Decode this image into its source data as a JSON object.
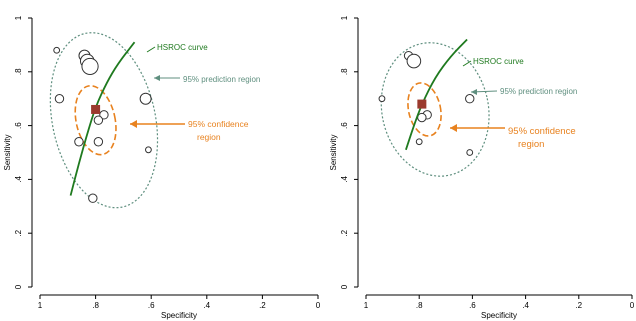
{
  "chart_data": [
    {
      "type": "scatter",
      "title": "",
      "xlabel": "Specificity",
      "ylabel": "Sensitivity",
      "xlim": [
        1,
        0
      ],
      "ylim": [
        0,
        1
      ],
      "x_ticks": [
        "1",
        ".8",
        ".6",
        ".4",
        ".2",
        "0"
      ],
      "y_ticks": [
        "0",
        ".2",
        ".4",
        ".6",
        ".8",
        "1"
      ],
      "study_points": [
        {
          "spec": 0.94,
          "sens": 0.88,
          "weight": 1
        },
        {
          "spec": 0.84,
          "sens": 0.86,
          "weight": 3
        },
        {
          "spec": 0.83,
          "sens": 0.84,
          "weight": 4
        },
        {
          "spec": 0.82,
          "sens": 0.82,
          "weight": 5
        },
        {
          "spec": 0.93,
          "sens": 0.7,
          "weight": 2
        },
        {
          "spec": 0.62,
          "sens": 0.7,
          "weight": 3
        },
        {
          "spec": 0.77,
          "sens": 0.64,
          "weight": 2
        },
        {
          "spec": 0.79,
          "sens": 0.62,
          "weight": 2
        },
        {
          "spec": 0.86,
          "sens": 0.54,
          "weight": 2
        },
        {
          "spec": 0.79,
          "sens": 0.54,
          "weight": 2
        },
        {
          "spec": 0.61,
          "sens": 0.51,
          "weight": 1
        },
        {
          "spec": 0.81,
          "sens": 0.33,
          "weight": 2
        }
      ],
      "summary_point": {
        "spec": 0.8,
        "sens": 0.66
      },
      "hsroc_curve": [
        [
          0.89,
          0.34
        ],
        [
          0.86,
          0.46
        ],
        [
          0.83,
          0.57
        ],
        [
          0.8,
          0.67
        ],
        [
          0.76,
          0.76
        ],
        [
          0.72,
          0.83
        ],
        [
          0.66,
          0.91
        ]
      ],
      "confidence_region": {
        "spec": 0.8,
        "sens": 0.62,
        "spec_radius": 0.07,
        "sens_radius": 0.13
      },
      "prediction_region": {
        "spec": 0.77,
        "sens": 0.62,
        "spec_radius": 0.185,
        "sens_radius": 0.33
      },
      "annotations": {
        "hsroc": "HSROC curve",
        "prediction": "95% prediction region",
        "confidence_line1": "95% confidence",
        "confidence_line2": "region"
      },
      "colors": {
        "hsroc": "#1f7a1f",
        "confidence": "#e8821f",
        "prediction": "#5f8f7f",
        "summary": "#9b3a2e",
        "points": "#333333"
      }
    },
    {
      "type": "scatter",
      "title": "",
      "xlabel": "Specificity",
      "ylabel": "Sensitivity",
      "xlim": [
        1,
        0
      ],
      "ylim": [
        0,
        1
      ],
      "x_ticks": [
        "1",
        ".8",
        ".6",
        ".4",
        ".2",
        "0"
      ],
      "y_ticks": [
        "0",
        ".2",
        ".4",
        ".6",
        ".8",
        "1"
      ],
      "study_points": [
        {
          "spec": 0.84,
          "sens": 0.86,
          "weight": 2
        },
        {
          "spec": 0.82,
          "sens": 0.84,
          "weight": 4
        },
        {
          "spec": 0.94,
          "sens": 0.7,
          "weight": 1
        },
        {
          "spec": 0.61,
          "sens": 0.7,
          "weight": 2
        },
        {
          "spec": 0.77,
          "sens": 0.64,
          "weight": 2
        },
        {
          "spec": 0.79,
          "sens": 0.63,
          "weight": 2
        },
        {
          "spec": 0.8,
          "sens": 0.54,
          "weight": 1
        },
        {
          "spec": 0.61,
          "sens": 0.5,
          "weight": 1
        }
      ],
      "summary_point": {
        "spec": 0.79,
        "sens": 0.68
      },
      "hsroc_curve": [
        [
          0.85,
          0.51
        ],
        [
          0.82,
          0.6
        ],
        [
          0.79,
          0.68
        ],
        [
          0.74,
          0.78
        ],
        [
          0.68,
          0.86
        ],
        [
          0.62,
          0.92
        ]
      ],
      "confidence_region": {
        "spec": 0.78,
        "sens": 0.66,
        "spec_radius": 0.06,
        "sens_radius": 0.1
      },
      "prediction_region": {
        "spec": 0.74,
        "sens": 0.66,
        "spec_radius": 0.2,
        "sens_radius": 0.25
      },
      "annotations": {
        "hsroc": "HSROC curve",
        "prediction": "95% prediction region",
        "confidence_line1": "95% confidence",
        "confidence_line2": "region"
      },
      "colors": {
        "hsroc": "#1f7a1f",
        "confidence": "#e8821f",
        "prediction": "#5f8f7f",
        "summary": "#9b3a2e",
        "points": "#333333"
      }
    }
  ]
}
